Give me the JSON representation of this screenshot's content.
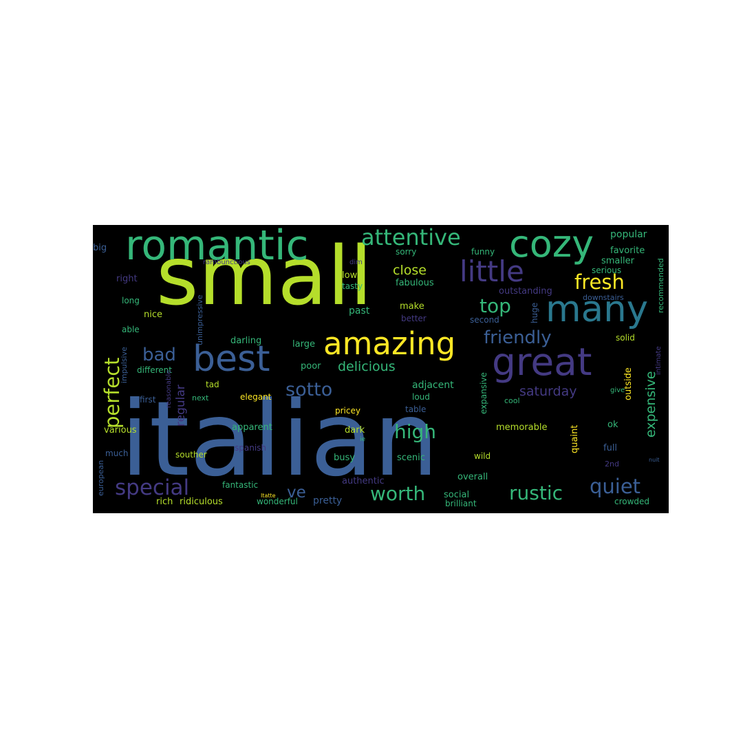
{
  "word_cloud": {
    "background": "#000000",
    "palette": "viridis",
    "words": [
      {
        "text": "italian",
        "color": "#3b5f96"
      },
      {
        "text": "small",
        "color": "#b5de2b"
      },
      {
        "text": "romantic",
        "color": "#35b779"
      },
      {
        "text": "cozy",
        "color": "#35b779"
      },
      {
        "text": "best",
        "color": "#3b5f96"
      },
      {
        "text": "great",
        "color": "#443a83"
      },
      {
        "text": "many",
        "color": "#2a788e"
      },
      {
        "text": "amazing",
        "color": "#fde725"
      },
      {
        "text": "little",
        "color": "#443a83"
      },
      {
        "text": "perfect",
        "color": "#b5de2b"
      },
      {
        "text": "attentive",
        "color": "#35b779"
      },
      {
        "text": "fresh",
        "color": "#fde725"
      },
      {
        "text": "special",
        "color": "#443a83"
      },
      {
        "text": "quiet",
        "color": "#3b5f96"
      },
      {
        "text": "rustic",
        "color": "#35b779"
      },
      {
        "text": "worth",
        "color": "#35b779"
      },
      {
        "text": "high",
        "color": "#35b779"
      },
      {
        "text": "friendly",
        "color": "#3b5f96"
      },
      {
        "text": "bad",
        "color": "#3b5f96"
      },
      {
        "text": "top",
        "color": "#35b779"
      },
      {
        "text": "sotto",
        "color": "#3b5f96"
      },
      {
        "text": "ve",
        "color": "#3b5f96"
      },
      {
        "text": "expensive",
        "color": "#35b779"
      },
      {
        "text": "delicious",
        "color": "#35b779"
      },
      {
        "text": "close",
        "color": "#b5de2b"
      },
      {
        "text": "saturday",
        "color": "#443a83"
      },
      {
        "text": "regular",
        "color": "#443a83"
      },
      {
        "text": "popular",
        "color": "#35b779"
      },
      {
        "text": "favorite",
        "color": "#35b779"
      },
      {
        "text": "smaller",
        "color": "#35b779"
      },
      {
        "text": "big",
        "color": "#3b5f96"
      },
      {
        "text": "rambunctious",
        "color": "#443a83"
      },
      {
        "text": "dim",
        "color": "#443a83"
      },
      {
        "text": "sorry",
        "color": "#35b779"
      },
      {
        "text": "funny",
        "color": "#35b779"
      },
      {
        "text": "low",
        "color": "#b5de2b"
      },
      {
        "text": "fabulous",
        "color": "#35b779"
      },
      {
        "text": "tasty",
        "color": "#35b779"
      },
      {
        "text": "outstanding",
        "color": "#443a83"
      },
      {
        "text": "serious",
        "color": "#35b779"
      },
      {
        "text": "downstairs",
        "color": "#3b5f96"
      },
      {
        "text": "recommended",
        "color": "#35b779"
      },
      {
        "text": "right",
        "color": "#443a83"
      },
      {
        "text": "long",
        "color": "#35b779"
      },
      {
        "text": "nice",
        "color": "#b5de2b"
      },
      {
        "text": "past",
        "color": "#35b779"
      },
      {
        "text": "make",
        "color": "#b5de2b"
      },
      {
        "text": "better",
        "color": "#443a83"
      },
      {
        "text": "second",
        "color": "#3b5f96"
      },
      {
        "text": "huge",
        "color": "#3b5f96"
      },
      {
        "text": "able",
        "color": "#35b779"
      },
      {
        "text": "unimpressive",
        "color": "#3b5f96"
      },
      {
        "text": "darling",
        "color": "#35b779"
      },
      {
        "text": "large",
        "color": "#35b779"
      },
      {
        "text": "solid",
        "color": "#b5de2b"
      },
      {
        "text": "impulsive",
        "color": "#3b5f96"
      },
      {
        "text": "poor",
        "color": "#35b779"
      },
      {
        "text": "different",
        "color": "#35b779"
      },
      {
        "text": "intimate",
        "color": "#443a83"
      },
      {
        "text": "reasonable",
        "color": "#443a83"
      },
      {
        "text": "tad",
        "color": "#b5de2b"
      },
      {
        "text": "adjacent",
        "color": "#35b779"
      },
      {
        "text": "outside",
        "color": "#fde725"
      },
      {
        "text": "give",
        "color": "#35b779"
      },
      {
        "text": "first",
        "color": "#3b5f96"
      },
      {
        "text": "next",
        "color": "#35b779"
      },
      {
        "text": "elegant",
        "color": "#fde725"
      },
      {
        "text": "loud",
        "color": "#35b779"
      },
      {
        "text": "cool",
        "color": "#35b779"
      },
      {
        "text": "pricey",
        "color": "#fde725"
      },
      {
        "text": "table",
        "color": "#3b5f96"
      },
      {
        "text": "expansive",
        "color": "#35b779"
      },
      {
        "text": "various",
        "color": "#b5de2b"
      },
      {
        "text": "apparent",
        "color": "#35b779"
      },
      {
        "text": "dark",
        "color": "#b5de2b"
      },
      {
        "text": "memorable",
        "color": "#b5de2b"
      },
      {
        "text": "ok",
        "color": "#35b779"
      },
      {
        "text": "quaint",
        "color": "#fde725"
      },
      {
        "text": "much",
        "color": "#3b5f96"
      },
      {
        "text": "spanish",
        "color": "#443a83"
      },
      {
        "text": "ie",
        "color": "#35b779"
      },
      {
        "text": "busy",
        "color": "#35b779"
      },
      {
        "text": "scenic",
        "color": "#35b779"
      },
      {
        "text": "full",
        "color": "#3b5f96"
      },
      {
        "text": "souther",
        "color": "#b5de2b"
      },
      {
        "text": "wild",
        "color": "#b5de2b"
      },
      {
        "text": "2nd",
        "color": "#443a83"
      },
      {
        "text": "european",
        "color": "#3b5f96"
      },
      {
        "text": "fantastic",
        "color": "#35b779"
      },
      {
        "text": "authentic",
        "color": "#443a83"
      },
      {
        "text": "overall",
        "color": "#35b779"
      },
      {
        "text": "rich",
        "color": "#b5de2b"
      },
      {
        "text": "ridiculous",
        "color": "#b5de2b"
      },
      {
        "text": "wonderful",
        "color": "#35b779"
      },
      {
        "text": "pretty",
        "color": "#3b5f96"
      },
      {
        "text": "social",
        "color": "#35b779"
      },
      {
        "text": "brilliant",
        "color": "#35b779"
      },
      {
        "text": "crowded",
        "color": "#35b779"
      },
      {
        "text": "nuit",
        "color": "#3b5f96"
      },
      {
        "text": "Itatte",
        "color": "#fde725"
      }
    ]
  }
}
